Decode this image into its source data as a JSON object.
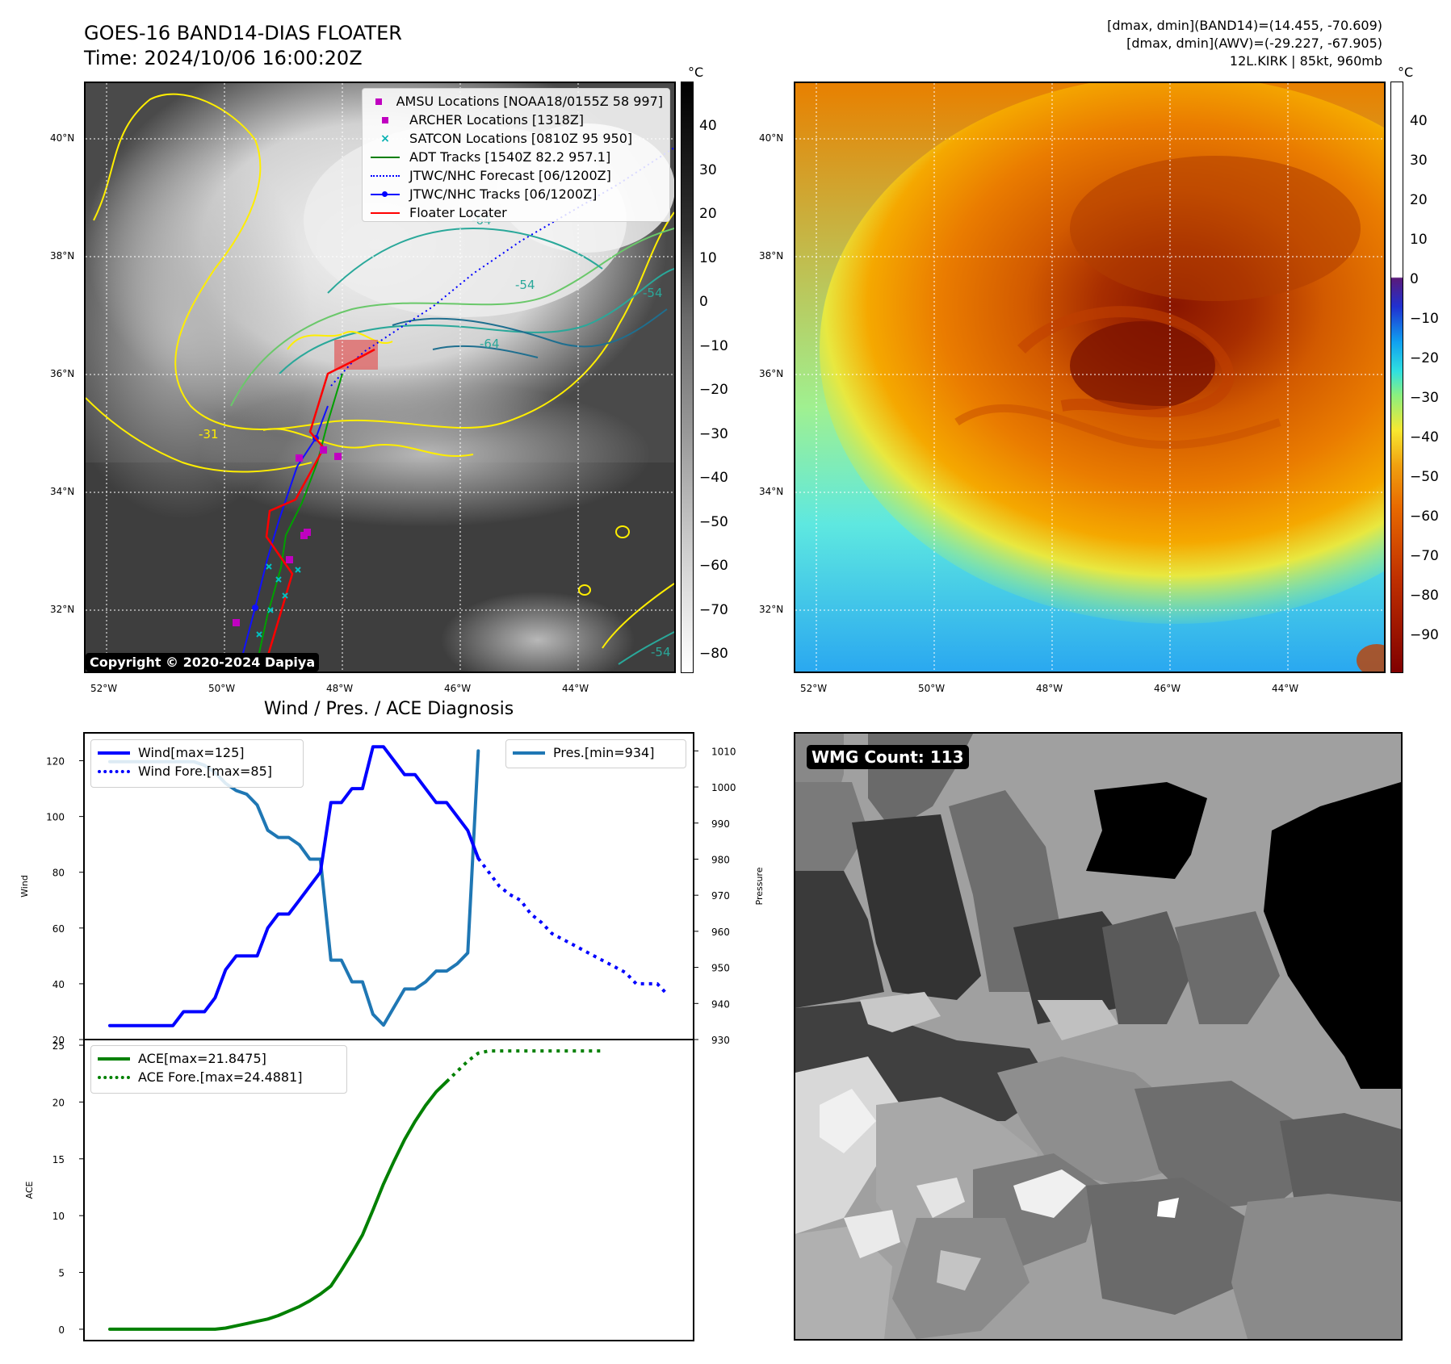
{
  "header": {
    "title": "GOES-16 BAND14-DIAS FLOATER",
    "time": "Time: 2024/10/06 16:00:20Z",
    "stats_line1": "[dmax, dmin](BAND14)=(14.455, -70.609)",
    "stats_line2": "[dmax, dmin](AWV)=(-29.227, -67.905)",
    "stats_line3": "12L.KIRK | 85kt, 960mb"
  },
  "map": {
    "lat_labels": [
      "40°N",
      "38°N",
      "36°N",
      "34°N",
      "32°N"
    ],
    "lon_labels": [
      "52°W",
      "50°W",
      "48°W",
      "46°W",
      "44°W"
    ],
    "copyright": "Copyright © 2020-2024 Dapiya",
    "contour_labels": [
      "-64",
      "-54",
      "-64",
      "-31",
      "-54",
      "-54"
    ],
    "legend": [
      {
        "label": "AMSU Locations [NOAA18/0155Z 58 997]",
        "symbol": "square",
        "color": "#c000c0"
      },
      {
        "label": "ARCHER Locations [1318Z]",
        "symbol": "square",
        "color": "#c000c0"
      },
      {
        "label": "SATCON Locations [0810Z 95 950]",
        "symbol": "x",
        "color": "#00b0b0"
      },
      {
        "label": "ADT Tracks [1540Z 82.2 957.1]",
        "symbol": "line",
        "color": "#007f00"
      },
      {
        "label": "JTWC/NHC Forecast [06/1200Z]",
        "symbol": "dotted",
        "color": "#0000ff"
      },
      {
        "label": "JTWC/NHC Tracks [06/1200Z]",
        "symbol": "line-dot",
        "color": "#0000ff"
      },
      {
        "label": "Floater Locater",
        "symbol": "line",
        "color": "#ff0000"
      }
    ]
  },
  "colorbar_left": {
    "unit": "°C",
    "ticks": [
      "40",
      "30",
      "20",
      "10",
      "0",
      "−10",
      "−20",
      "−30",
      "−40",
      "−50",
      "−60",
      "−70",
      "−80"
    ]
  },
  "colorbar_right": {
    "unit": "°C",
    "ticks": [
      "40",
      "30",
      "20",
      "10",
      "0",
      "−10",
      "−20",
      "−30",
      "−40",
      "−50",
      "−60",
      "−70",
      "−80",
      "−90"
    ]
  },
  "chart_data": [
    {
      "type": "line",
      "title": "Wind / Pres. / ACE Diagnosis",
      "ylabel": "Wind",
      "ylabel_right": "Pressure",
      "ylim": [
        20,
        130
      ],
      "ylim_right": [
        930,
        1015
      ],
      "yticks": [
        20,
        40,
        60,
        80,
        100,
        120
      ],
      "yticks_right": [
        930,
        940,
        950,
        960,
        970,
        980,
        990,
        1000,
        1010
      ],
      "legend_left": [
        "Wind[max=125]",
        "Wind Fore.[max=85]"
      ],
      "legend_right": [
        "Pres.[min=934]"
      ],
      "series": [
        {
          "name": "Wind[max=125]",
          "color": "#0000ff",
          "style": "solid",
          "values": [
            25,
            25,
            25,
            25,
            25,
            25,
            25,
            30,
            30,
            30,
            35,
            45,
            50,
            50,
            50,
            60,
            65,
            65,
            70,
            75,
            80,
            105,
            105,
            110,
            110,
            125,
            125,
            120,
            115,
            115,
            110,
            105,
            105,
            100,
            95,
            85
          ]
        },
        {
          "name": "Wind Fore.[max=85]",
          "color": "#0000ff",
          "style": "dotted",
          "values": [
            85,
            80,
            75,
            72,
            70,
            65,
            62,
            58,
            56,
            54,
            52,
            50,
            48,
            46,
            44,
            40,
            40,
            40,
            36
          ],
          "start": 35
        },
        {
          "name": "Pres.[min=934]",
          "color": "#1f77b4",
          "style": "solid",
          "values": [
            1007,
            1007,
            1007,
            1007,
            1007,
            1007,
            1007,
            1007,
            1007,
            1006,
            1004,
            1001,
            999,
            998,
            995,
            988,
            986,
            986,
            984,
            980,
            980,
            952,
            952,
            946,
            946,
            937,
            934,
            939,
            944,
            944,
            946,
            949,
            949,
            951,
            954,
            1010
          ]
        }
      ]
    },
    {
      "type": "line",
      "ylabel": "ACE",
      "ylim": [
        -1,
        25.5
      ],
      "yticks": [
        0,
        5,
        10,
        15,
        20,
        25
      ],
      "legend": [
        "ACE[max=21.8475]",
        "ACE Fore.[max=24.4881]"
      ],
      "series": [
        {
          "name": "ACE[max=21.8475]",
          "color": "#008000",
          "style": "solid",
          "values": [
            0,
            0,
            0,
            0,
            0,
            0,
            0,
            0,
            0,
            0,
            0,
            0.1,
            0.3,
            0.5,
            0.7,
            0.9,
            1.2,
            1.6,
            2.0,
            2.5,
            3.1,
            3.8,
            5.2,
            6.7,
            8.3,
            10.5,
            12.8,
            14.8,
            16.7,
            18.3,
            19.7,
            20.9,
            21.8
          ]
        },
        {
          "name": "ACE Fore.[max=24.4881]",
          "color": "#008000",
          "style": "dotted",
          "values": [
            21.8,
            22.7,
            23.6,
            24.3,
            24.5,
            24.5,
            24.5,
            24.5,
            24.5,
            24.5,
            24.5,
            24.5,
            24.5,
            24.5,
            24.5,
            24.5
          ],
          "start": 32
        }
      ]
    }
  ],
  "wmg": {
    "label": "WMG Count: 113"
  }
}
